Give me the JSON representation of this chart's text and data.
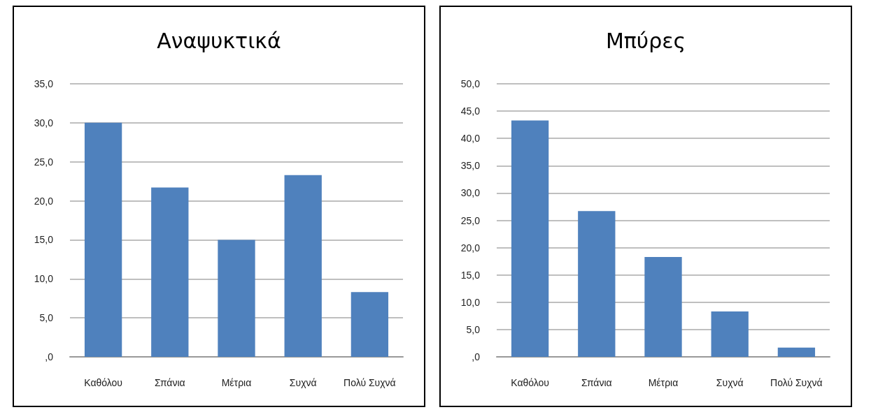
{
  "chart_data": [
    {
      "type": "bar",
      "title": "Αναψυκτικά",
      "categories": [
        "Καθόλου",
        "Σπάνια",
        "Μέτρια",
        "Συχνά",
        "Πολύ Συχνά"
      ],
      "values": [
        30.0,
        21.7,
        15.0,
        23.3,
        8.3
      ],
      "color": "#4f81bd",
      "ylim": [
        0,
        35
      ],
      "yticks": [
        {
          "value": 0,
          "label": ",0"
        },
        {
          "value": 5,
          "label": "5,0"
        },
        {
          "value": 10,
          "label": "10,0"
        },
        {
          "value": 15,
          "label": "15,0"
        },
        {
          "value": 20,
          "label": "20,0"
        },
        {
          "value": 25,
          "label": "25,0"
        },
        {
          "value": 30,
          "label": "30,0"
        },
        {
          "value": 35,
          "label": "35,0"
        }
      ],
      "grid": "y"
    },
    {
      "type": "bar",
      "title": "Μπύρες",
      "categories": [
        "Καθόλου",
        "Σπάνια",
        "Μέτρια",
        "Συχνά",
        "Πολύ Συχνά"
      ],
      "values": [
        43.3,
        26.7,
        18.3,
        8.3,
        1.7
      ],
      "color": "#4f81bd",
      "ylim": [
        0,
        50
      ],
      "yticks": [
        {
          "value": 0,
          "label": ",0"
        },
        {
          "value": 5,
          "label": "5,0"
        },
        {
          "value": 10,
          "label": "10,0"
        },
        {
          "value": 15,
          "label": "15,0"
        },
        {
          "value": 20,
          "label": "20,0"
        },
        {
          "value": 25,
          "label": "25,0"
        },
        {
          "value": 30,
          "label": "30,0"
        },
        {
          "value": 35,
          "label": "35,0"
        },
        {
          "value": 40,
          "label": "40,0"
        },
        {
          "value": 45,
          "label": "45,0"
        },
        {
          "value": 50,
          "label": "50,0"
        }
      ],
      "grid": "y"
    }
  ]
}
